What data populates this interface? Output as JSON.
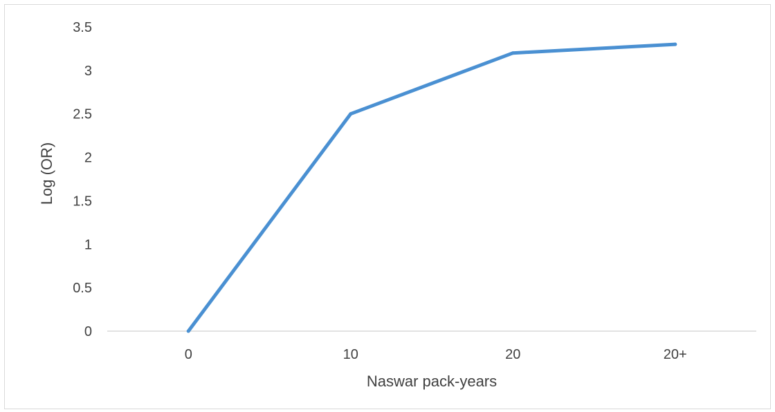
{
  "chart_data": {
    "type": "line",
    "title": "",
    "xlabel": "Naswar pack-years",
    "ylabel": "Log (OR)",
    "categories": [
      "0",
      "10",
      "20",
      "20+"
    ],
    "series": [
      {
        "values": [
          0,
          2.5,
          3.2,
          3.3
        ],
        "color": "#4a90d2"
      }
    ],
    "ylim": [
      0,
      3.5
    ],
    "yticks": [
      "0",
      "0.5",
      "1",
      "1.5",
      "2",
      "2.5",
      "3",
      "3.5"
    ],
    "ytick_values": [
      0,
      0.5,
      1,
      1.5,
      2,
      2.5,
      3,
      3.5
    ],
    "grid": false,
    "legend": "none",
    "axis_color": "#d9d9d9",
    "text_color": "#404040"
  }
}
